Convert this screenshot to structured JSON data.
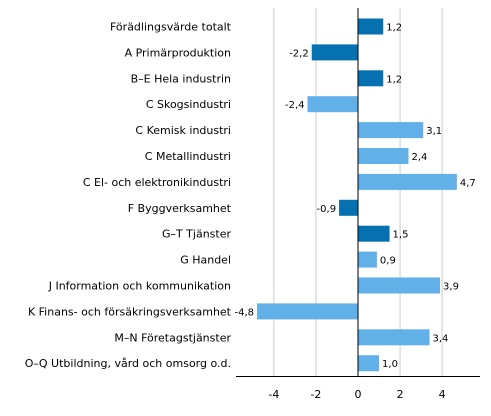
{
  "chart_data": {
    "type": "bar",
    "orientation": "horizontal",
    "categories": [
      "Förädlingsvärde totalt",
      "A Primärproduktion",
      "B–E Hela industrin",
      "C Skogsindustri",
      "C Kemisk industri",
      "C Metallindustri",
      "C El- och elektronikindustri",
      "F Byggverksamhet",
      "G–T Tjänster",
      "G Handel",
      "J Information och kommunikation",
      "K Finans- och försäkringsverksamhet",
      "M–N Företagstjänster",
      "O–Q Utbildning, vård och omsorg o.d."
    ],
    "values": [
      1.2,
      -2.2,
      1.2,
      -2.4,
      3.1,
      2.4,
      4.7,
      -0.9,
      1.5,
      0.9,
      3.9,
      -4.8,
      3.4,
      1.0
    ],
    "value_labels": [
      "1,2",
      "-2,2",
      "1,2",
      "-2,4",
      "3,1",
      "2,4",
      "4,7",
      "-0,9",
      "1,5",
      "0,9",
      "3,9",
      "-4,8",
      "3,4",
      "1,0"
    ],
    "highlighted": [
      true,
      true,
      true,
      false,
      false,
      false,
      false,
      true,
      true,
      false,
      false,
      false,
      false,
      false
    ],
    "xlim": [
      -5.8,
      5.8
    ],
    "xticks": [
      -4,
      -2,
      0,
      2,
      4
    ],
    "xtick_labels": [
      "-4",
      "-2",
      "0",
      "2",
      "4"
    ],
    "grid": "vertical",
    "colors": {
      "highlight": "#0571b0",
      "normal": "#62b0e8",
      "grid": "#cccccc",
      "axis": "#000000"
    }
  }
}
